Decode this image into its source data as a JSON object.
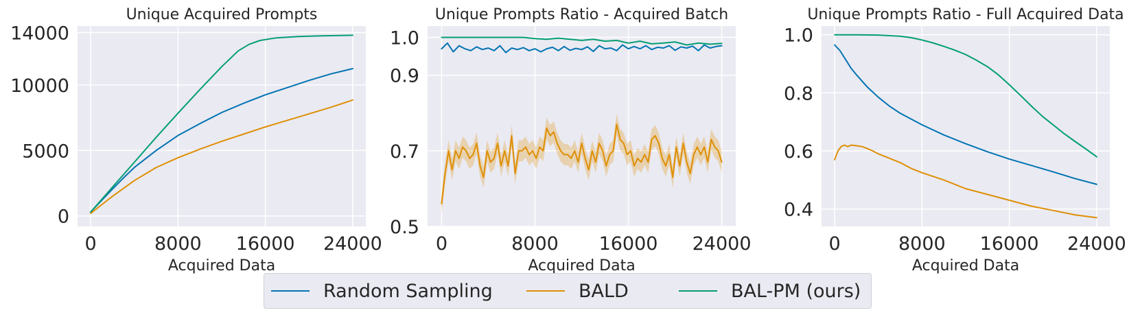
{
  "chart_data": [
    {
      "type": "line",
      "title": "Unique Acquired Prompts",
      "xlabel": "Acquired Data",
      "ylabel": "",
      "xlim": [
        -1200,
        25200
      ],
      "ylim": [
        -800,
        14500
      ],
      "xticks": [
        0,
        8000,
        16000,
        24000
      ],
      "xtick_labels": [
        "0",
        "8000",
        "16000",
        "24000"
      ],
      "yticks": [
        0,
        5000,
        10000,
        14000
      ],
      "ytick_labels": [
        "0",
        "5000",
        "10000",
        "14000"
      ],
      "grid": true,
      "series": [
        {
          "name": "Random Sampling",
          "color": "#0173b2",
          "x": [
            0,
            1000,
            2000,
            3000,
            4000,
            6000,
            8000,
            10000,
            12000,
            14000,
            16000,
            18000,
            20000,
            22000,
            24000
          ],
          "y": [
            300,
            1180,
            2050,
            2900,
            3700,
            5000,
            6150,
            7050,
            7900,
            8600,
            9250,
            9800,
            10350,
            10850,
            11250
          ]
        },
        {
          "name": "BALD",
          "color": "#de8f05",
          "x": [
            0,
            1000,
            2000,
            3000,
            4000,
            6000,
            8000,
            10000,
            12000,
            14000,
            16000,
            18000,
            20000,
            22000,
            24000
          ],
          "y": [
            200,
            850,
            1500,
            2100,
            2700,
            3700,
            4450,
            5100,
            5700,
            6250,
            6800,
            7300,
            7800,
            8300,
            8850
          ]
        },
        {
          "name": "BAL-PM (ours)",
          "color": "#029e73",
          "x": [
            0,
            1000,
            2000,
            3000,
            4000,
            6000,
            8000,
            10000,
            12000,
            13500,
            14500,
            15500,
            17000,
            19000,
            21000,
            24000
          ],
          "y": [
            300,
            1250,
            2200,
            3150,
            4100,
            6000,
            7850,
            9650,
            11400,
            12600,
            13100,
            13400,
            13600,
            13700,
            13750,
            13800
          ]
        }
      ]
    },
    {
      "type": "line",
      "title": "Unique Prompts Ratio - Acquired Batch",
      "xlabel": "Acquired Data",
      "ylabel": "",
      "xlim": [
        -1200,
        25200
      ],
      "ylim": [
        0.5,
        1.03
      ],
      "xticks": [
        0,
        8000,
        16000,
        24000
      ],
      "xtick_labels": [
        "0",
        "8000",
        "16000",
        "24000"
      ],
      "yticks": [
        0.5,
        0.7,
        0.9,
        1.0
      ],
      "ytick_labels": [
        "0.5",
        "0.7",
        "0.9",
        "1.0"
      ],
      "grid": true,
      "series": [
        {
          "name": "Random Sampling",
          "color": "#0173b2",
          "x": [
            0,
            500,
            1000,
            1500,
            2000,
            2500,
            3000,
            3500,
            4000,
            4500,
            5000,
            5500,
            6000,
            6500,
            7000,
            7500,
            8000,
            8500,
            9000,
            9500,
            10000,
            10500,
            11000,
            11500,
            12000,
            12500,
            13000,
            13500,
            14000,
            14500,
            15000,
            15500,
            16000,
            16500,
            17000,
            17500,
            18000,
            18500,
            19000,
            19500,
            20000,
            20500,
            21000,
            21500,
            22000,
            22500,
            23000,
            23500,
            24000
          ],
          "y": [
            0.97,
            0.985,
            0.962,
            0.978,
            0.97,
            0.965,
            0.975,
            0.968,
            0.972,
            0.965,
            0.978,
            0.96,
            0.972,
            0.968,
            0.973,
            0.965,
            0.97,
            0.962,
            0.97,
            0.974,
            0.965,
            0.976,
            0.966,
            0.971,
            0.968,
            0.975,
            0.963,
            0.978,
            0.97,
            0.972,
            0.965,
            0.98,
            0.97,
            0.976,
            0.97,
            0.978,
            0.968,
            0.974,
            0.972,
            0.978,
            0.966,
            0.975,
            0.972,
            0.977,
            0.965,
            0.98,
            0.972,
            0.976,
            0.978
          ]
        },
        {
          "name": "BALD",
          "color": "#de8f05",
          "x": [
            0,
            300,
            600,
            900,
            1200,
            1500,
            1800,
            2100,
            2400,
            2700,
            3000,
            3300,
            3600,
            3900,
            4200,
            4500,
            4800,
            5100,
            5400,
            5700,
            6000,
            6300,
            6600,
            6900,
            7200,
            7500,
            7800,
            8100,
            8400,
            8700,
            9000,
            9300,
            9600,
            9900,
            10200,
            10500,
            10800,
            11100,
            11400,
            11700,
            12000,
            12300,
            12600,
            12900,
            13200,
            13500,
            13800,
            14100,
            14400,
            14700,
            15000,
            15300,
            15600,
            15900,
            16200,
            16500,
            16800,
            17100,
            17400,
            17700,
            18000,
            18300,
            18600,
            18900,
            19200,
            19500,
            19800,
            20100,
            20400,
            20700,
            21000,
            21300,
            21600,
            21900,
            22200,
            22500,
            22800,
            23100,
            23400,
            23700,
            24000
          ],
          "y": [
            0.56,
            0.64,
            0.7,
            0.65,
            0.7,
            0.68,
            0.71,
            0.7,
            0.68,
            0.69,
            0.72,
            0.66,
            0.63,
            0.7,
            0.67,
            0.68,
            0.72,
            0.66,
            0.7,
            0.66,
            0.74,
            0.64,
            0.7,
            0.7,
            0.71,
            0.69,
            0.7,
            0.68,
            0.71,
            0.7,
            0.76,
            0.74,
            0.75,
            0.72,
            0.7,
            0.69,
            0.69,
            0.68,
            0.7,
            0.67,
            0.72,
            0.68,
            0.65,
            0.7,
            0.67,
            0.72,
            0.7,
            0.66,
            0.69,
            0.7,
            0.77,
            0.73,
            0.72,
            0.69,
            0.7,
            0.66,
            0.68,
            0.67,
            0.69,
            0.67,
            0.73,
            0.74,
            0.72,
            0.68,
            0.66,
            0.69,
            0.63,
            0.71,
            0.66,
            0.72,
            0.67,
            0.64,
            0.69,
            0.71,
            0.69,
            0.71,
            0.67,
            0.73,
            0.71,
            0.7,
            0.67
          ]
        },
        {
          "name": "BAL-PM (ours)",
          "color": "#029e73",
          "x": [
            0,
            1000,
            2000,
            3000,
            4000,
            5000,
            6000,
            7000,
            8000,
            9000,
            10000,
            11000,
            12000,
            13000,
            14000,
            15000,
            16000,
            17000,
            18000,
            19000,
            20000,
            21000,
            22000,
            23000,
            24000
          ],
          "y": [
            1.0,
            1.0,
            1.0,
            1.0,
            1.0,
            1.0,
            1.0,
            1.0,
            0.997,
            0.995,
            0.998,
            0.995,
            0.992,
            0.995,
            0.99,
            0.992,
            0.985,
            0.99,
            0.983,
            0.985,
            0.988,
            0.98,
            0.985,
            0.982,
            0.984
          ]
        }
      ]
    },
    {
      "type": "line",
      "title": "Unique Prompts Ratio - Full Acquired Data",
      "xlabel": "Acquired Data",
      "ylabel": "",
      "xlim": [
        -1200,
        25200
      ],
      "ylim": [
        0.34,
        1.03
      ],
      "xticks": [
        0,
        8000,
        16000,
        24000
      ],
      "xtick_labels": [
        "0",
        "8000",
        "16000",
        "24000"
      ],
      "yticks": [
        0.4,
        0.6,
        0.8,
        1.0
      ],
      "ytick_labels": [
        "0.4",
        "0.6",
        "0.8",
        "1.0"
      ],
      "grid": true,
      "series": [
        {
          "name": "Random Sampling",
          "color": "#0173b2",
          "x": [
            0,
            500,
            1000,
            1500,
            2000,
            3000,
            4000,
            5000,
            6000,
            8000,
            10000,
            12000,
            14000,
            16000,
            18000,
            20000,
            22000,
            24000
          ],
          "y": [
            0.965,
            0.945,
            0.915,
            0.885,
            0.862,
            0.82,
            0.785,
            0.755,
            0.73,
            0.69,
            0.655,
            0.625,
            0.597,
            0.572,
            0.55,
            0.528,
            0.505,
            0.485
          ]
        },
        {
          "name": "BALD",
          "color": "#de8f05",
          "x": [
            0,
            300,
            600,
            900,
            1200,
            1500,
            2000,
            2500,
            3000,
            3500,
            4000,
            5000,
            6000,
            7000,
            8000,
            10000,
            12000,
            14000,
            16000,
            18000,
            20000,
            22000,
            24000
          ],
          "y": [
            0.57,
            0.6,
            0.615,
            0.62,
            0.615,
            0.62,
            0.618,
            0.615,
            0.608,
            0.6,
            0.59,
            0.575,
            0.56,
            0.54,
            0.525,
            0.5,
            0.47,
            0.45,
            0.43,
            0.41,
            0.395,
            0.38,
            0.37
          ]
        },
        {
          "name": "BAL-PM (ours)",
          "color": "#029e73",
          "x": [
            0,
            2000,
            4000,
            6000,
            7000,
            8000,
            9000,
            10000,
            11000,
            12000,
            13000,
            14000,
            15000,
            16000,
            17000,
            18000,
            19000,
            20000,
            21000,
            22000,
            23000,
            24000
          ],
          "y": [
            1.0,
            1.0,
            0.999,
            0.995,
            0.99,
            0.982,
            0.972,
            0.96,
            0.947,
            0.932,
            0.912,
            0.89,
            0.862,
            0.828,
            0.792,
            0.755,
            0.72,
            0.69,
            0.66,
            0.633,
            0.607,
            0.58
          ]
        }
      ]
    }
  ],
  "legend": {
    "items": [
      {
        "label": "Random Sampling",
        "color": "#0173b2"
      },
      {
        "label": "BALD",
        "color": "#de8f05"
      },
      {
        "label": "BAL-PM (ours)",
        "color": "#029e73"
      }
    ]
  }
}
